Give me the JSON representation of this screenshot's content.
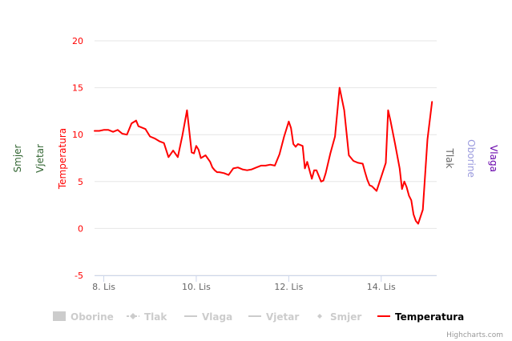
{
  "chart_data": {
    "type": "line",
    "y_axis_left_title": "Temperatura",
    "y_axis_extra_left_titles": [
      "Vjetar",
      "Smjer"
    ],
    "y_axis_right_titles": [
      "Tlak",
      "Oborine",
      "Vlaga"
    ],
    "ylim": [
      -5,
      20
    ],
    "y_ticks": [
      "-5",
      "0",
      "5",
      "10",
      "15",
      "20"
    ],
    "x_ticks": [
      "8. Lis",
      "10. Lis",
      "12. Lis",
      "14. Lis"
    ],
    "x_tick_values": [
      0,
      2,
      4,
      6
    ],
    "xlim": [
      -0.2,
      7.2
    ],
    "series": [
      {
        "name": "Temperatura",
        "color": "#ff0000",
        "x": [
          -0.2,
          -0.1,
          0.0,
          0.1,
          0.2,
          0.3,
          0.4,
          0.5,
          0.6,
          0.7,
          0.75,
          0.8,
          0.9,
          1.0,
          1.1,
          1.2,
          1.25,
          1.3,
          1.4,
          1.5,
          1.6,
          1.7,
          1.8,
          1.9,
          1.95,
          2.0,
          2.05,
          2.1,
          2.2,
          2.3,
          2.35,
          2.4,
          2.45,
          2.5,
          2.6,
          2.7,
          2.8,
          2.9,
          3.0,
          3.1,
          3.2,
          3.3,
          3.4,
          3.5,
          3.6,
          3.7,
          3.8,
          3.9,
          4.0,
          4.05,
          4.1,
          4.15,
          4.2,
          4.3,
          4.35,
          4.4,
          4.45,
          4.5,
          4.55,
          4.6,
          4.7,
          4.75,
          4.8,
          4.9,
          5.0,
          5.1,
          5.2,
          5.3,
          5.4,
          5.5,
          5.6,
          5.65,
          5.7,
          5.75,
          5.8,
          5.9,
          6.0,
          6.1,
          6.15,
          6.2,
          6.3,
          6.4,
          6.45,
          6.5,
          6.55,
          6.6,
          6.65,
          6.7,
          6.75,
          6.8,
          6.9,
          7.0,
          7.1
        ],
        "values": [
          10.4,
          10.4,
          10.5,
          10.5,
          10.3,
          10.5,
          10.1,
          10.0,
          11.2,
          11.5,
          10.9,
          10.8,
          10.6,
          9.8,
          9.6,
          9.3,
          9.2,
          9.1,
          7.6,
          8.3,
          7.6,
          9.9,
          12.6,
          8.1,
          8.0,
          8.8,
          8.4,
          7.5,
          7.8,
          7.1,
          6.5,
          6.2,
          6.0,
          6.0,
          5.9,
          5.7,
          6.4,
          6.5,
          6.3,
          6.2,
          6.3,
          6.5,
          6.7,
          6.7,
          6.8,
          6.7,
          7.9,
          9.8,
          11.4,
          10.7,
          9.0,
          8.7,
          9.0,
          8.8,
          6.4,
          7.1,
          6.2,
          5.3,
          6.2,
          6.2,
          5.0,
          5.1,
          5.9,
          8.0,
          9.8,
          15.0,
          12.6,
          7.8,
          7.2,
          7.0,
          6.9,
          6.0,
          5.2,
          4.6,
          4.5,
          4.0,
          5.5,
          7.0,
          12.6,
          11.5,
          9.0,
          6.4,
          4.2,
          5.0,
          4.4,
          3.5,
          3.0,
          1.5,
          0.8,
          0.5,
          2.0,
          9.5,
          13.5
        ]
      }
    ],
    "legend": [
      "Oborine",
      "Tlak",
      "Vlaga",
      "Vjetar",
      "Smjer",
      "Temperatura"
    ]
  },
  "legend_colors": {
    "Oborine": "#cccccc",
    "Tlak": "#cccccc",
    "Vlaga": "#cccccc",
    "Vjetar": "#cccccc",
    "Smjer": "#cccccc",
    "Temperatura": "#ff0000"
  },
  "axis_title_colors": {
    "Temperatura": "#ff0000",
    "Vjetar": "#336633",
    "Smjer": "#336633",
    "Tlak": "#666666",
    "Oborine": "#9999dd",
    "Vlaga": "#6600aa"
  },
  "credits": "Highcharts.com"
}
